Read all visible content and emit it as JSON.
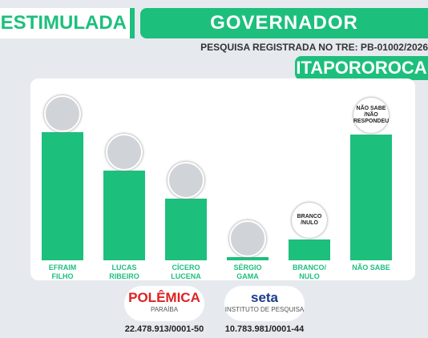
{
  "chart_data": {
    "type": "bar",
    "title": "GOVERNADOR",
    "tag": "ESTIMULADA",
    "subtitle": "PESQUISA REGISTRADA NO TRE: PB-01002/2026",
    "location": "ITAPOROROCA",
    "categories": [
      "EFRAIM FILHO",
      "LUCAS RIBEIRO",
      "CÍCERO LUCENA",
      "SÉRGIO GAMA",
      "BRANCO/ NULO",
      "NÃO SABE"
    ],
    "values": [
      32,
      22.5,
      15.5,
      0.8,
      5.2,
      31.5
    ],
    "bubble_labels": [
      null,
      null,
      null,
      null,
      "BRANCO /NULO",
      "NÃO SABE /NÃO RESPONDEU"
    ],
    "color": "#1dbf7c",
    "footer": {
      "logos": [
        {
          "name": "POLÊMICA",
          "sub": "PARAÍBA",
          "cnpj": "22.478.913/0001-50"
        },
        {
          "name": "seta",
          "sub": "INSTITUTO DE PESQUISA",
          "cnpj": "10.783.981/0001-44"
        }
      ]
    }
  }
}
